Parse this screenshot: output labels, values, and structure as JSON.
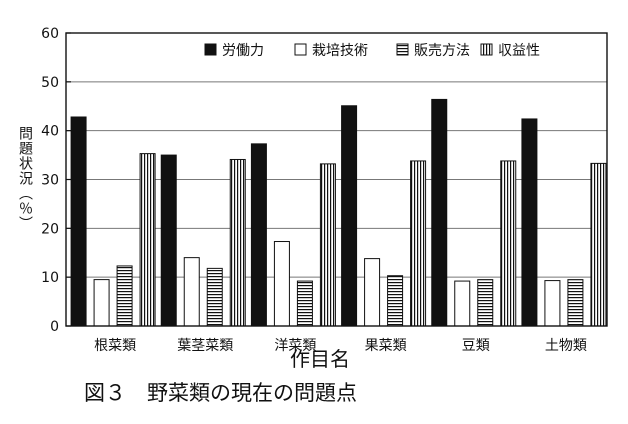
{
  "chart_data": {
    "type": "bar",
    "categories": [
      "根菜類",
      "葉茎菜類",
      "洋菜類",
      "果菜類",
      "豆類",
      "土物類"
    ],
    "series": [
      {
        "name": "労働力",
        "values": [
          42.8,
          35.0,
          37.3,
          45.1,
          46.4,
          42.4
        ],
        "pattern": "solid"
      },
      {
        "name": "栽培技術",
        "values": [
          9.5,
          14.0,
          17.3,
          13.8,
          9.2,
          9.3
        ],
        "pattern": "empty"
      },
      {
        "name": "販売方法",
        "values": [
          12.3,
          11.8,
          9.2,
          10.3,
          9.5,
          9.5
        ],
        "pattern": "horizontal-lines"
      },
      {
        "name": "収益性",
        "values": [
          35.3,
          34.1,
          33.2,
          33.8,
          33.8,
          33.3
        ],
        "pattern": "vertical-lines"
      }
    ],
    "ylabel": "問題状況（％）",
    "xlabel": "作目名",
    "ylim": [
      0,
      60
    ],
    "yticks": [
      0,
      10,
      20,
      30,
      40,
      50,
      60
    ],
    "grid": true,
    "legend_position": "top-right",
    "colors": {
      "bar_fill": "#111111",
      "axis": "#111111",
      "grid": "#777777",
      "background": "#ffffff"
    }
  },
  "caption": "図３　野菜類の現在の問題点"
}
